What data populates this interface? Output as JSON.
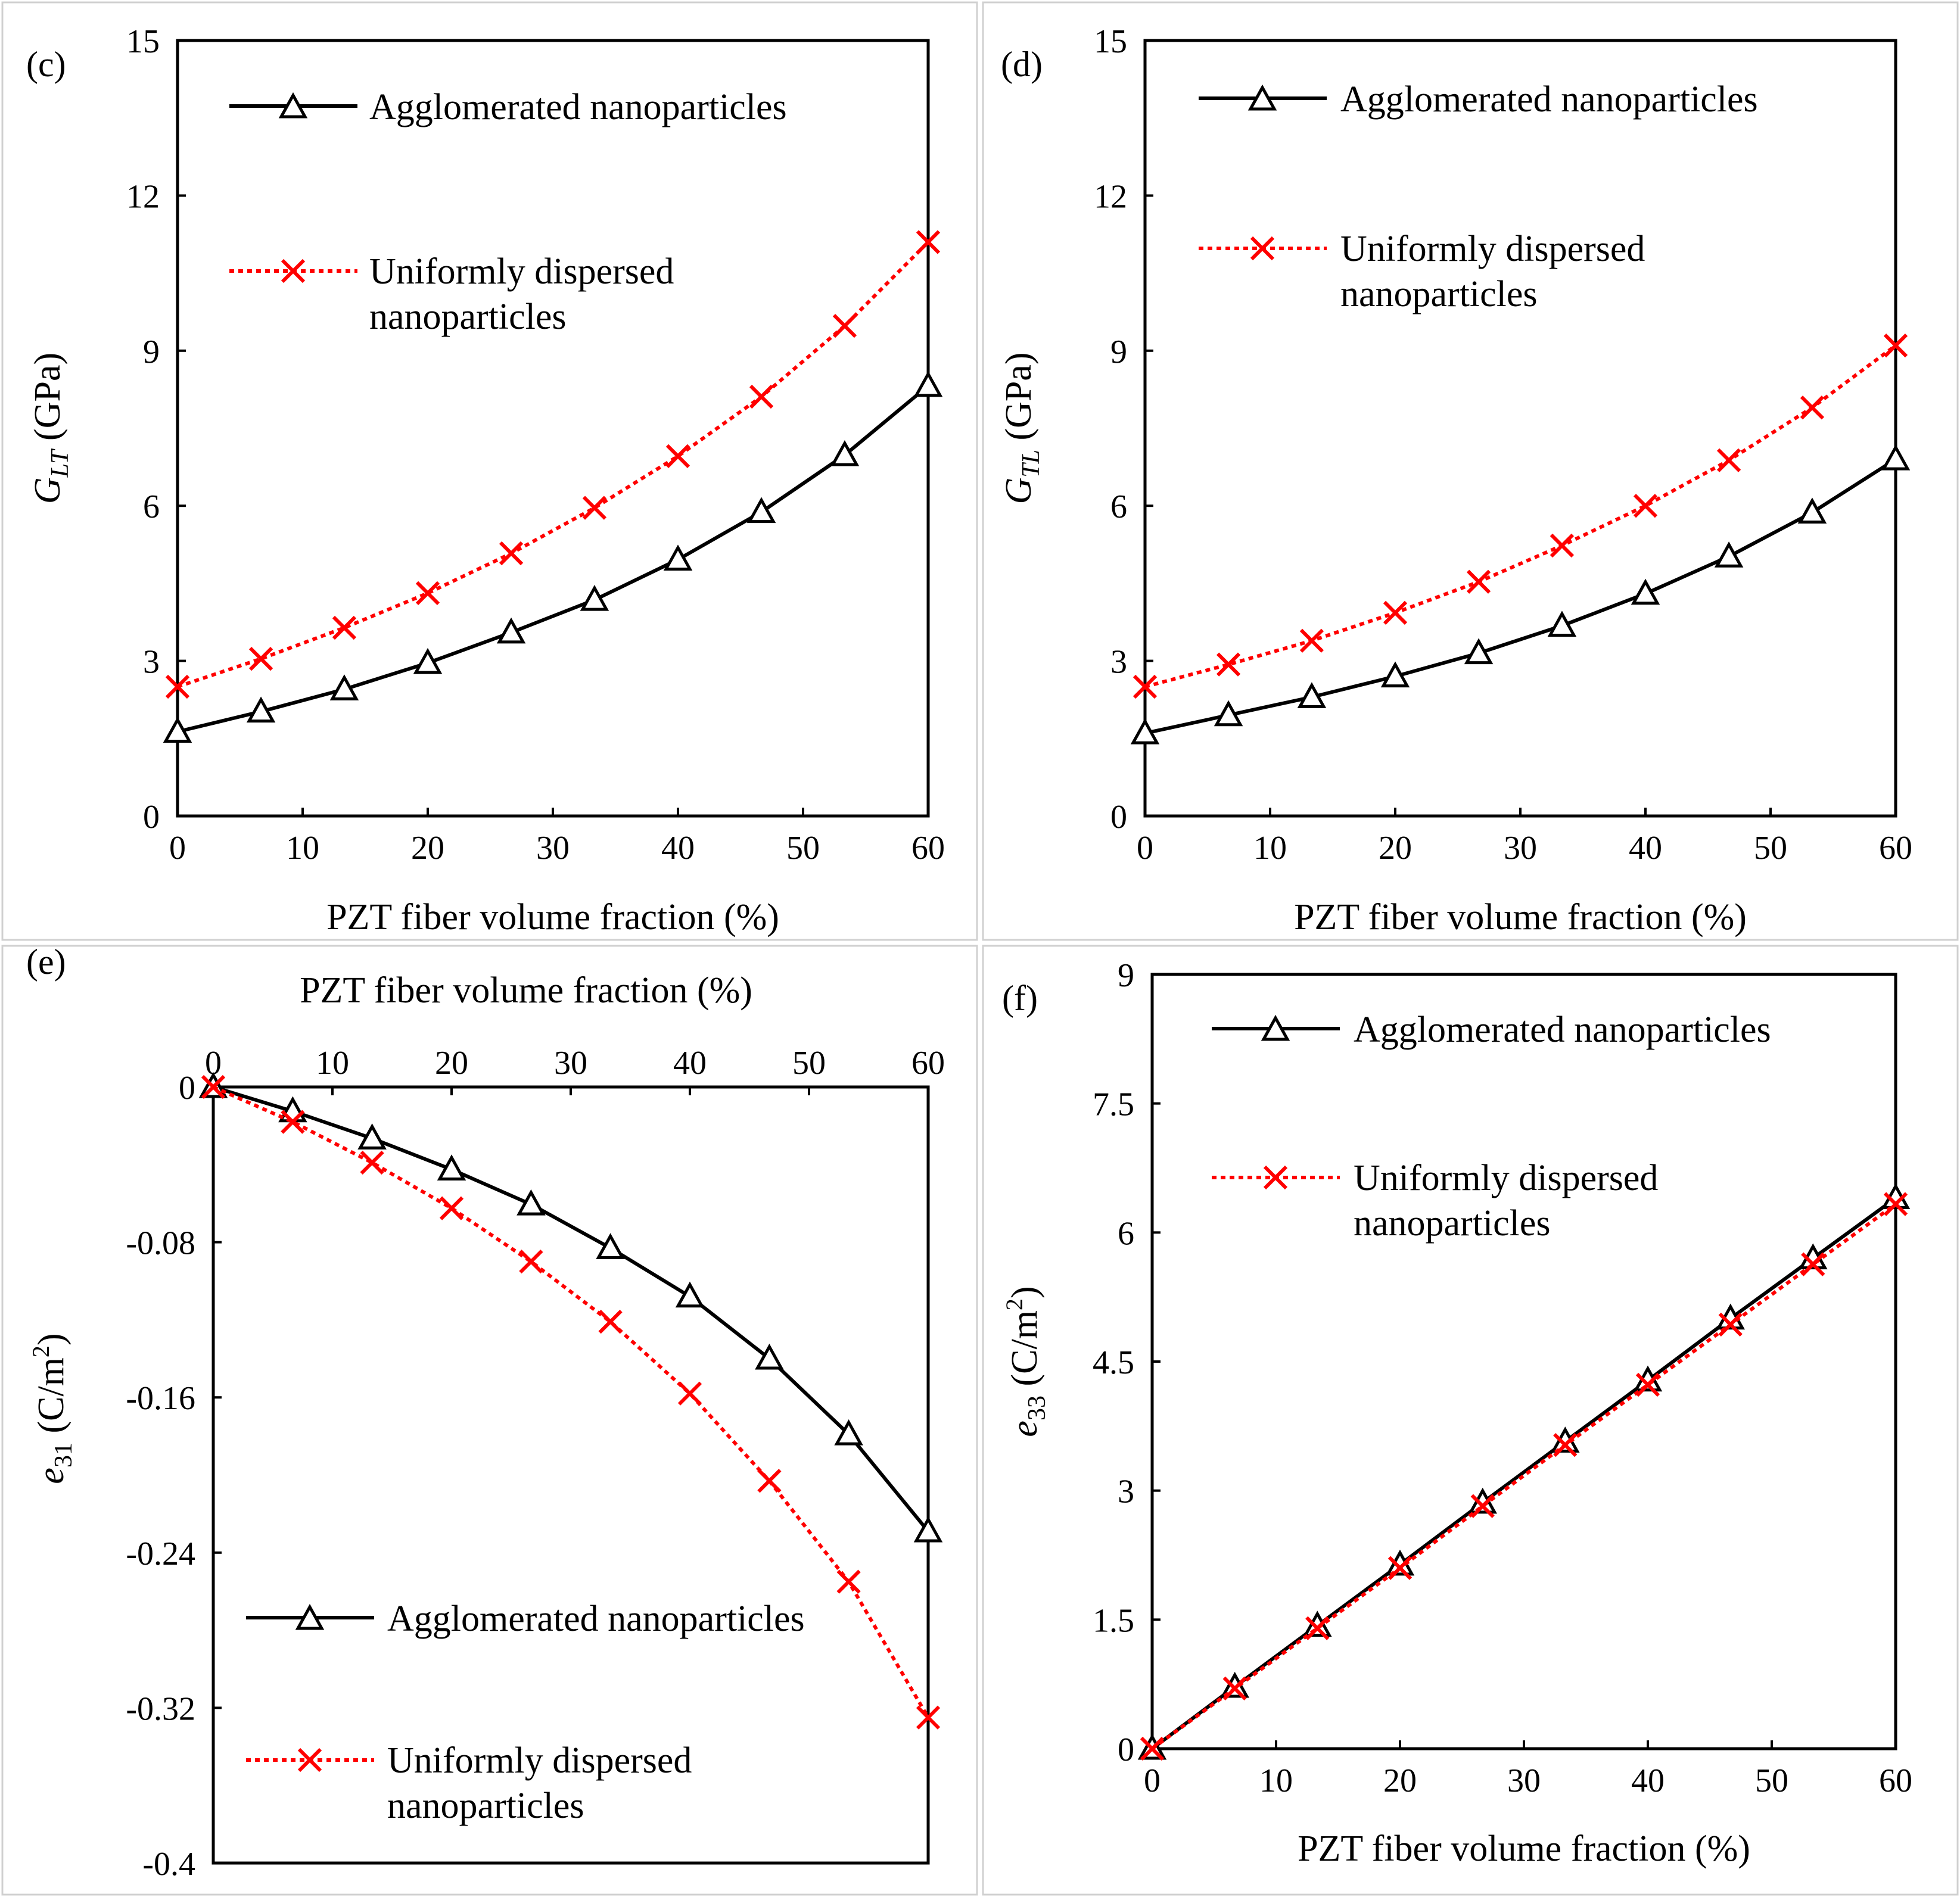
{
  "colors": {
    "agglomerated": "#000000",
    "uniform": "#ff0000"
  },
  "legend": {
    "agglomerated": "Agglomerated nanoparticles",
    "uniform_line1": "Uniformly dispersed",
    "uniform_line2": "nanoparticles"
  },
  "chart_data": [
    {
      "panel": "(c)",
      "type": "line",
      "xlabel": "PZT fiber volume fraction (%)",
      "ylabel_main": "G",
      "ylabel_sub": "LT",
      "ylabel_unit": " (GPa)",
      "xlim": [
        0,
        60
      ],
      "ylim": [
        0,
        15
      ],
      "xticks": [
        0,
        10,
        20,
        30,
        40,
        50,
        60
      ],
      "yticks": [
        0,
        3,
        6,
        9,
        12,
        15
      ],
      "legend_position": "top-left",
      "x": [
        0,
        6.67,
        13.33,
        20,
        26.67,
        33.33,
        40,
        46.67,
        53.33,
        60
      ],
      "series": [
        {
          "name": "Agglomerated nanoparticles",
          "values": [
            1.63,
            2.02,
            2.45,
            2.96,
            3.55,
            4.18,
            4.96,
            5.88,
            6.98,
            8.32
          ]
        },
        {
          "name": "Uniformly dispersed nanoparticles",
          "values": [
            2.5,
            3.04,
            3.64,
            4.31,
            5.08,
            5.96,
            6.96,
            8.11,
            9.48,
            11.1
          ]
        }
      ]
    },
    {
      "panel": "(d)",
      "type": "line",
      "xlabel": "PZT fiber volume fraction (%)",
      "ylabel_main": "G",
      "ylabel_sub": "TL",
      "ylabel_unit": " (GPa)",
      "xlim": [
        0,
        60
      ],
      "ylim": [
        0,
        15
      ],
      "xticks": [
        0,
        10,
        20,
        30,
        40,
        50,
        60
      ],
      "yticks": [
        0,
        3,
        6,
        9,
        12,
        15
      ],
      "legend_position": "top-left",
      "x": [
        0,
        6.67,
        13.33,
        20,
        26.67,
        33.33,
        40,
        46.67,
        53.33,
        60
      ],
      "series": [
        {
          "name": "Agglomerated nanoparticles",
          "values": [
            1.6,
            1.95,
            2.3,
            2.7,
            3.15,
            3.68,
            4.3,
            5.02,
            5.87,
            6.9
          ]
        },
        {
          "name": "Uniformly dispersed nanoparticles",
          "values": [
            2.5,
            2.93,
            3.39,
            3.93,
            4.53,
            5.23,
            6.0,
            6.88,
            7.9,
            9.1
          ]
        }
      ]
    },
    {
      "panel": "(e)",
      "type": "line",
      "xlabel": "PZT fiber volume fraction (%)",
      "ylabel_main": "e",
      "ylabel_sub": "31",
      "ylabel_unit": " (C/m",
      "ylabel_sup": "2",
      "ylabel_close": ")",
      "xaxis_position": "top",
      "xlim": [
        0,
        60
      ],
      "ylim": [
        -0.4,
        0
      ],
      "xticks": [
        0,
        10,
        20,
        30,
        40,
        50,
        60
      ],
      "yticks": [
        0,
        -0.08,
        -0.16,
        -0.24,
        -0.32,
        -0.4
      ],
      "legend_position": "bottom-left",
      "x": [
        0,
        6.67,
        13.33,
        20,
        26.67,
        33.33,
        40,
        46.67,
        53.33,
        60
      ],
      "series": [
        {
          "name": "Agglomerated nanoparticles",
          "values": [
            0,
            -0.0125,
            -0.0265,
            -0.0425,
            -0.0605,
            -0.083,
            -0.108,
            -0.14,
            -0.179,
            -0.229
          ]
        },
        {
          "name": "Uniformly dispersed nanoparticles",
          "values": [
            0,
            -0.018,
            -0.039,
            -0.0625,
            -0.09,
            -0.121,
            -0.158,
            -0.203,
            -0.255,
            -0.325
          ]
        }
      ]
    },
    {
      "panel": "(f)",
      "type": "line",
      "xlabel": "PZT fiber volume fraction (%)",
      "ylabel_main": "e",
      "ylabel_sub": "33",
      "ylabel_unit": " (C/m",
      "ylabel_sup": "2",
      "ylabel_close": ")",
      "xlim": [
        0,
        60
      ],
      "ylim": [
        0,
        9
      ],
      "xticks": [
        0,
        10,
        20,
        30,
        40,
        50,
        60
      ],
      "yticks": [
        0,
        1.5,
        3,
        4.5,
        6,
        7.5,
        9
      ],
      "legend_position": "top-left",
      "x": [
        0,
        6.67,
        13.33,
        20,
        26.67,
        33.33,
        40,
        46.67,
        53.33,
        60
      ],
      "series": [
        {
          "name": "Agglomerated nanoparticles",
          "values": [
            0,
            0.72,
            1.43,
            2.14,
            2.86,
            3.57,
            4.28,
            5.0,
            5.7,
            6.4
          ]
        },
        {
          "name": "Uniformly dispersed nanoparticles",
          "values": [
            0,
            0.7,
            1.4,
            2.1,
            2.82,
            3.53,
            4.23,
            4.93,
            5.63,
            6.33
          ]
        }
      ]
    }
  ]
}
